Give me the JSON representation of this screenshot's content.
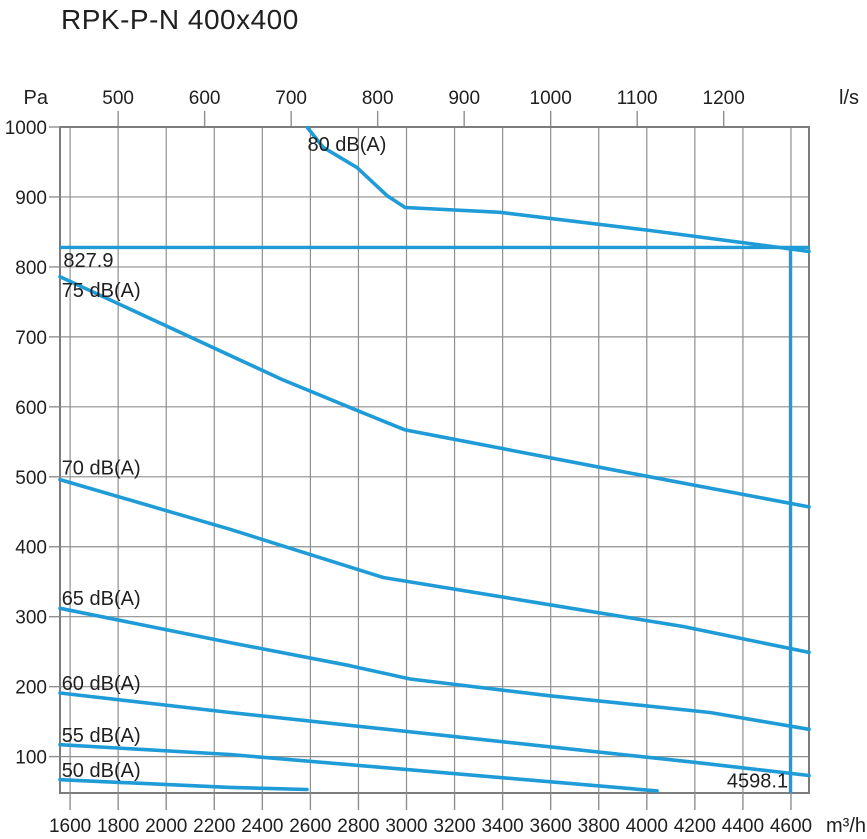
{
  "title": "RPK-P-N 400x400",
  "units": {
    "pressure": "Pa",
    "flow_top": "l/s",
    "flow_bottom": "m³/h"
  },
  "chart_data": {
    "type": "line",
    "title": "RPK-P-N 400x400",
    "x_axis_top": {
      "unit": "l/s",
      "ticks": [
        500,
        600,
        700,
        800,
        900,
        1000,
        1100,
        1200
      ],
      "m3h_per_ls": 3.6
    },
    "x_axis_bottom": {
      "unit": "m³/h",
      "ticks": [
        1600,
        1800,
        2000,
        2200,
        2400,
        2600,
        2800,
        3000,
        3200,
        3400,
        3600,
        3800,
        4000,
        4200,
        4400,
        4600
      ],
      "range": [
        1558,
        4675
      ]
    },
    "y_axis": {
      "unit": "Pa",
      "ticks": [
        100,
        200,
        300,
        400,
        500,
        600,
        700,
        800,
        900,
        1000
      ],
      "range": [
        48,
        1000
      ]
    },
    "grid": {
      "x_step": 200,
      "y_step": 100
    },
    "legend_position": "inline-labels",
    "series": [
      {
        "name": "80 dB(A)",
        "label_at": [
          2588,
          966
        ],
        "points": [
          [
            2588,
            999
          ],
          [
            2653,
            971
          ],
          [
            2794,
            942
          ],
          [
            2919,
            902
          ],
          [
            2994,
            885
          ],
          [
            3389,
            878
          ],
          [
            4014,
            852
          ],
          [
            4525,
            829
          ],
          [
            4675,
            822
          ]
        ]
      },
      {
        "name": "75 dB(A)",
        "label_at": [
          1565,
          757
        ],
        "points": [
          [
            1558,
            786
          ],
          [
            2482,
            639
          ],
          [
            2807,
            593
          ],
          [
            2994,
            567
          ],
          [
            3131,
            558
          ],
          [
            3889,
            508
          ],
          [
            4675,
            457
          ]
        ]
      },
      {
        "name": "70 dB(A)",
        "label_at": [
          1565,
          503
        ],
        "points": [
          [
            1558,
            496
          ],
          [
            2266,
            425
          ],
          [
            2903,
            356
          ],
          [
            3597,
            317
          ],
          [
            4151,
            286
          ],
          [
            4675,
            249
          ]
        ]
      },
      {
        "name": "65 dB(A)",
        "label_at": [
          1565,
          317
        ],
        "points": [
          [
            1558,
            312
          ],
          [
            2266,
            263
          ],
          [
            2765,
            230
          ],
          [
            3015,
            211
          ],
          [
            3597,
            187
          ],
          [
            4263,
            163
          ],
          [
            4675,
            139
          ]
        ]
      },
      {
        "name": "60 dB(A)",
        "label_at": [
          1565,
          195
        ],
        "points": [
          [
            1558,
            191
          ],
          [
            2266,
            163
          ],
          [
            4222,
            91
          ],
          [
            4675,
            73
          ]
        ]
      },
      {
        "name": "55 dB(A)",
        "label_at": [
          1565,
          121
        ],
        "points": [
          [
            1558,
            117
          ],
          [
            2266,
            103
          ],
          [
            4043,
            51
          ]
        ]
      },
      {
        "name": "50 dB(A)",
        "label_at": [
          1565,
          71
        ],
        "points": [
          [
            1558,
            67
          ],
          [
            2266,
            56
          ],
          [
            2586,
            53
          ]
        ]
      }
    ],
    "operating_point": {
      "pressure_pa": 827.9,
      "flow_m3h": 4598.1,
      "pressure_label": "827.9",
      "flow_label": "4598.1",
      "pressure_label_at": [
        1572,
        800
      ],
      "flow_label_at": [
        4588,
        56
      ]
    },
    "colors": {
      "curve": "#1f9cd7",
      "grid": "#8f8f8f",
      "border": "#7c7c7c",
      "text": "#1f1f1f"
    }
  }
}
